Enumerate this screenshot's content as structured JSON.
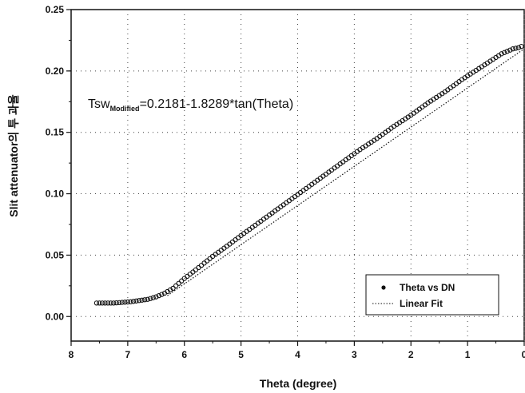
{
  "chart_data": {
    "type": "scatter",
    "xlabel": "Theta (degree)",
    "ylabel": "Slit attenuator의  투 과율",
    "xlim": [
      8,
      0
    ],
    "ylim": [
      -0.02,
      0.25
    ],
    "x_ticks": [
      "8",
      "7",
      "6",
      "5",
      "4",
      "3",
      "2",
      "1",
      "0"
    ],
    "y_ticks": [
      "0.00",
      "0.05",
      "0.10",
      "0.15",
      "0.20",
      "0.25"
    ],
    "grid": true,
    "legend_position": "bottom-right",
    "annotation": {
      "prefix": "Tsw",
      "subscript": "Modified",
      "equation": "=0.2181-1.8289*tan(Theta)"
    },
    "series": [
      {
        "name": "Theta vs DN",
        "style": "markers",
        "x": [
          7.55,
          7.4,
          7.25,
          7.1,
          6.95,
          6.8,
          6.65,
          6.5,
          6.35,
          6.2,
          6.0,
          5.8,
          5.5,
          5.2,
          5.0,
          4.7,
          4.4,
          4.1,
          3.8,
          3.5,
          3.2,
          2.9,
          2.6,
          2.3,
          2.0,
          1.7,
          1.4,
          1.1,
          0.8,
          0.6,
          0.4,
          0.3,
          0.2,
          0.1,
          0.05
        ],
        "y": [
          0.011,
          0.011,
          0.011,
          0.0115,
          0.012,
          0.013,
          0.014,
          0.016,
          0.019,
          0.023,
          0.031,
          0.038,
          0.049,
          0.059,
          0.066,
          0.076,
          0.086,
          0.096,
          0.106,
          0.116,
          0.126,
          0.136,
          0.145,
          0.155,
          0.164,
          0.174,
          0.183,
          0.193,
          0.202,
          0.208,
          0.214,
          0.216,
          0.218,
          0.219,
          0.22
        ]
      },
      {
        "name": "Linear Fit",
        "style": "dotted-line",
        "x": [
          6.3,
          0.0
        ],
        "y": [
          0.017,
          0.2181
        ]
      }
    ]
  }
}
